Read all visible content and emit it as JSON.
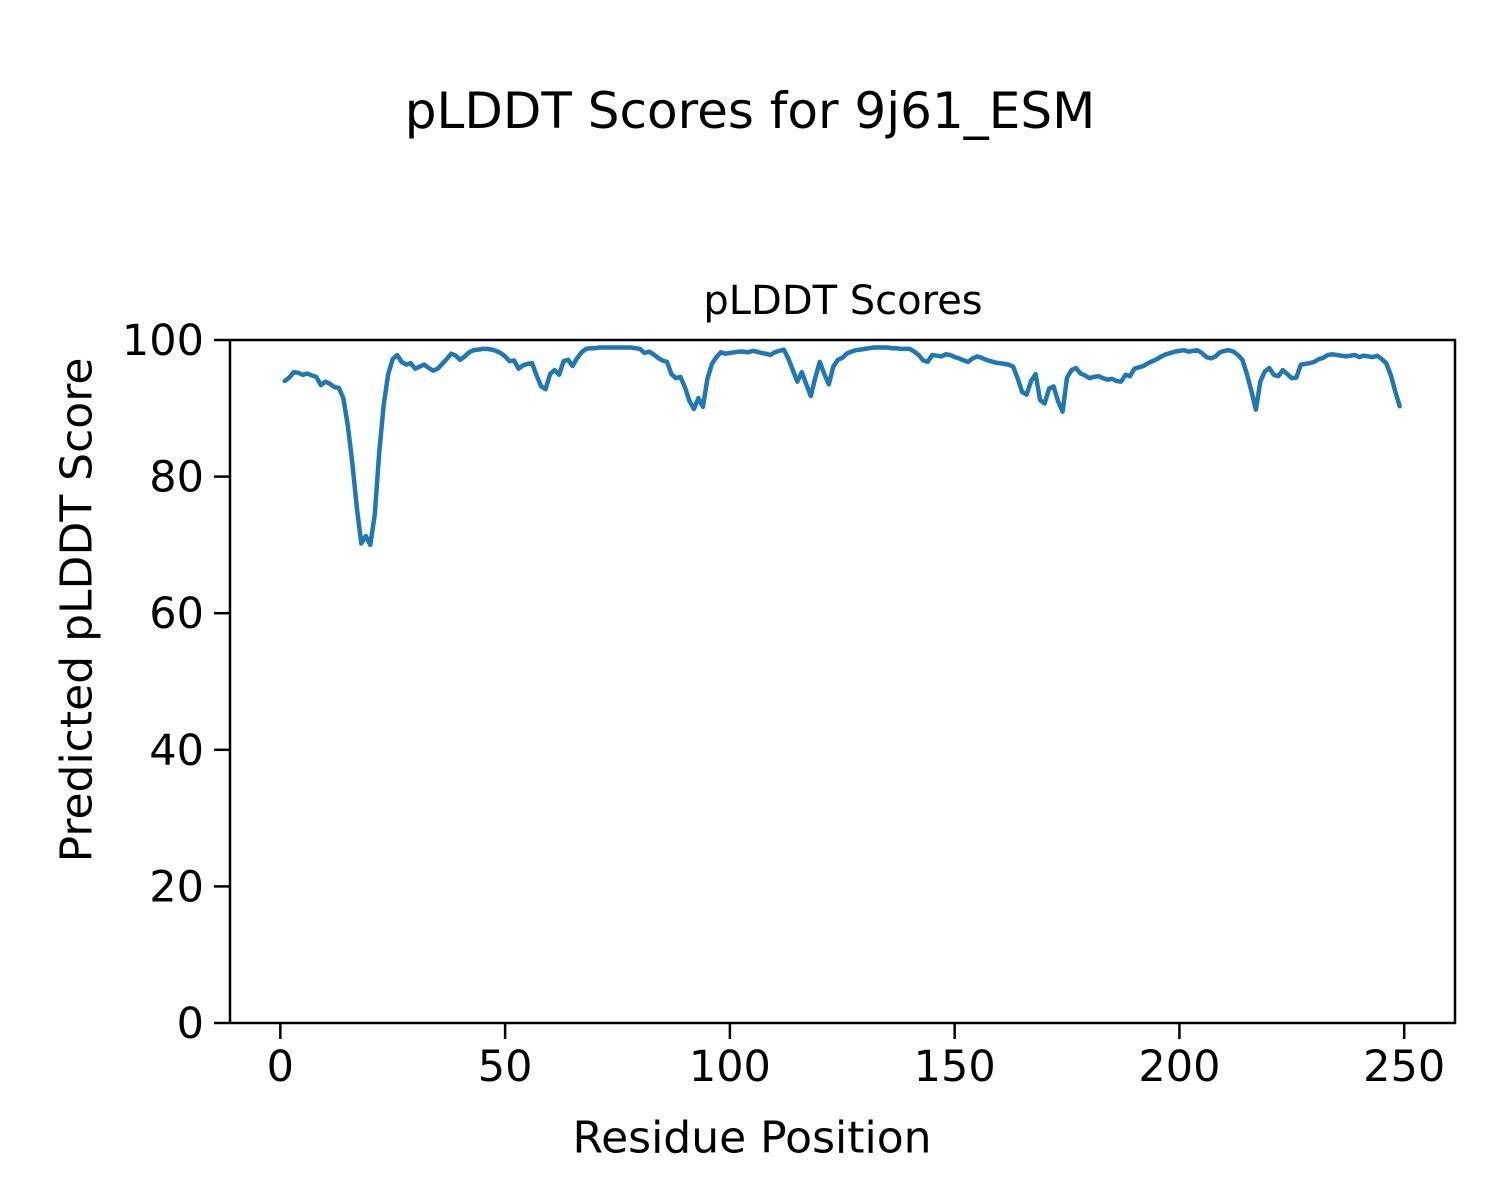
{
  "figure": {
    "background": "#ffffff",
    "text_color": "#000000"
  },
  "chart_data": {
    "type": "line",
    "suptitle": "pLDDT Scores for 9j61_ESM",
    "title": "pLDDT Scores",
    "xlabel": "Residue Position",
    "ylabel": "Predicted pLDDT Score",
    "x_ticks": [
      0,
      50,
      100,
      150,
      200,
      250
    ],
    "y_ticks": [
      0,
      20,
      40,
      60,
      80,
      100
    ],
    "xlim": [
      -11.2,
      261.3
    ],
    "ylim": [
      0,
      100
    ],
    "grid": false,
    "legend": "none",
    "line_color": "#1f77b4",
    "line_width": 4.5,
    "series": [
      {
        "name": "pLDDT",
        "x_range": [
          1,
          249
        ],
        "x_step": 1,
        "y": [
          94.0,
          94.5,
          95.3,
          95.2,
          94.9,
          95.1,
          94.8,
          94.6,
          93.4,
          93.9,
          93.6,
          93.1,
          93.0,
          91.5,
          87.5,
          82.0,
          75.5,
          70.2,
          71.3,
          70.0,
          74.5,
          83.5,
          90.5,
          95.0,
          97.2,
          97.8,
          96.8,
          96.4,
          96.6,
          95.8,
          96.1,
          96.4,
          95.9,
          95.5,
          95.8,
          96.5,
          97.2,
          98.0,
          97.7,
          97.1,
          97.6,
          98.2,
          98.5,
          98.6,
          98.7,
          98.7,
          98.6,
          98.4,
          98.1,
          97.6,
          96.9,
          97.0,
          95.8,
          96.3,
          96.5,
          96.6,
          94.8,
          93.2,
          92.8,
          95.0,
          95.6,
          94.9,
          96.9,
          97.1,
          96.2,
          97.3,
          98.2,
          98.7,
          98.8,
          98.8,
          98.9,
          98.9,
          98.9,
          98.9,
          98.9,
          98.9,
          98.9,
          98.9,
          98.8,
          98.7,
          98.1,
          98.3,
          97.9,
          97.4,
          97.0,
          96.8,
          95.0,
          94.4,
          94.6,
          93.1,
          91.1,
          89.9,
          91.5,
          90.2,
          94.3,
          96.5,
          97.5,
          98.2,
          98.0,
          98.1,
          98.2,
          98.3,
          98.3,
          98.2,
          98.4,
          98.3,
          98.1,
          98.0,
          97.8,
          98.2,
          98.4,
          98.6,
          97.3,
          95.6,
          93.9,
          95.3,
          93.5,
          91.8,
          94.5,
          96.8,
          95.0,
          93.5,
          96.1,
          97.1,
          97.4,
          98.0,
          98.3,
          98.5,
          98.6,
          98.7,
          98.8,
          98.9,
          98.9,
          98.9,
          98.9,
          98.8,
          98.8,
          98.7,
          98.7,
          98.7,
          98.3,
          97.8,
          97.0,
          96.8,
          97.8,
          97.7,
          97.6,
          97.9,
          97.8,
          97.5,
          97.3,
          97.0,
          96.8,
          97.3,
          97.6,
          97.4,
          97.1,
          96.9,
          96.7,
          96.6,
          96.5,
          96.4,
          96.1,
          94.4,
          92.4,
          92.0,
          94.0,
          95.0,
          91.2,
          90.7,
          92.9,
          93.2,
          91.0,
          89.5,
          94.5,
          95.6,
          95.9,
          95.1,
          94.8,
          94.4,
          94.6,
          94.7,
          94.4,
          94.2,
          94.3,
          94.0,
          93.9,
          94.9,
          94.7,
          95.8,
          96.0,
          96.2,
          96.6,
          96.9,
          97.2,
          97.6,
          97.9,
          98.1,
          98.3,
          98.4,
          98.5,
          98.3,
          98.4,
          98.5,
          98.1,
          97.5,
          97.3,
          97.6,
          98.2,
          98.4,
          98.5,
          98.3,
          97.8,
          97.1,
          95.0,
          92.5,
          89.8,
          93.9,
          95.4,
          95.9,
          94.9,
          94.7,
          95.6,
          95.0,
          94.4,
          94.5,
          96.4,
          96.5,
          96.6,
          96.8,
          97.2,
          97.4,
          97.8,
          97.9,
          97.8,
          97.7,
          97.6,
          97.7,
          97.8,
          97.5,
          97.7,
          97.6,
          97.5,
          97.7,
          97.2,
          96.6,
          94.9,
          92.5,
          90.3
        ]
      }
    ]
  }
}
